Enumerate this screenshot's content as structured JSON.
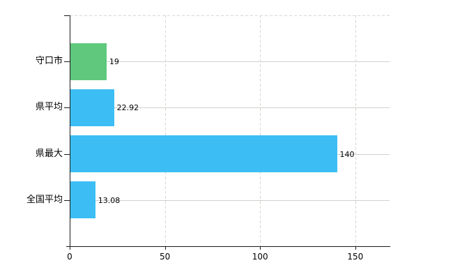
{
  "chart_data": {
    "type": "bar",
    "orientation": "horizontal",
    "title": "",
    "xlabel": "",
    "ylabel": "",
    "categories": [
      "守口市",
      "県平均",
      "県最大",
      "全国平均"
    ],
    "values": [
      19,
      22.92,
      140,
      13.08
    ],
    "value_labels": [
      "19",
      "22.92",
      "140",
      "13.08"
    ],
    "bar_colors": [
      "#5fc87d",
      "#3cbef5",
      "#3cbef5",
      "#3cbef5"
    ],
    "xlim": [
      0,
      168
    ],
    "xticks": [
      0,
      50,
      100,
      150
    ],
    "xtick_labels": [
      "0",
      "50",
      "100",
      "150"
    ],
    "grid": true,
    "legend": false
  },
  "colors": {
    "background": "#ffffff",
    "axis": "#1a1a1a",
    "h_gridline": "#cdd3cb",
    "v_gridline": "#d3d8d1",
    "top_border": "#d3d8d1",
    "bar_green": "#5fc87d",
    "bar_blue": "#3cbef5",
    "text": "#000000"
  }
}
